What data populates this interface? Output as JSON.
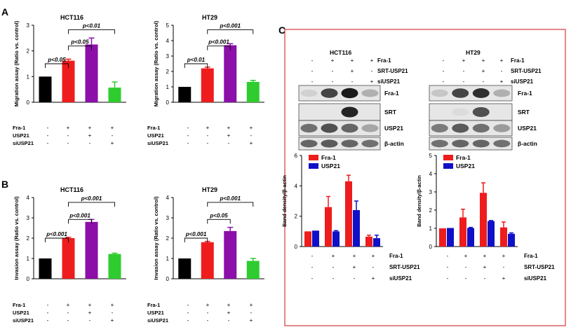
{
  "colors": {
    "black": "#000000",
    "red": "#ee1c1c",
    "purple": "#8b0fa8",
    "green": "#2ecc2e",
    "blue": "#1010c8",
    "frame": "#d63a3a"
  },
  "panel_labels": {
    "a": "A",
    "b": "B",
    "c": "C"
  },
  "conditions_ab": {
    "row_labels": [
      "Fra-1",
      "USP21",
      "siUSP21"
    ],
    "columns": [
      [
        "-",
        "-",
        "-"
      ],
      [
        "+",
        "-",
        "-"
      ],
      [
        "+",
        "+",
        "-"
      ],
      [
        "+",
        "-",
        "+"
      ]
    ]
  },
  "conditions_c": {
    "row_labels": [
      "Fra-1",
      "SRT-USP21",
      "siUSP21"
    ],
    "columns": [
      [
        "-",
        "-",
        "-"
      ],
      [
        "+",
        "-",
        "-"
      ],
      [
        "+",
        "+",
        "-"
      ],
      [
        "+",
        "-",
        "+"
      ]
    ]
  },
  "chart_data": [
    {
      "id": "A-HCT116",
      "type": "bar",
      "title": "HCT116",
      "ylabel": "Migration assay (Ratio vs. control)",
      "ylim": [
        0,
        3
      ],
      "yticks": [
        "0",
        "1",
        "2",
        "3"
      ],
      "values": [
        1.0,
        1.62,
        2.25,
        0.57
      ],
      "errors": [
        0,
        0.06,
        0.25,
        0.22
      ],
      "comparisons": [
        {
          "label": "p<0.05",
          "from": 0,
          "to": 1
        },
        {
          "label": "p<0.05",
          "from": 1,
          "to": 2
        },
        {
          "label": "p<0.01",
          "from": 1,
          "to": 3
        }
      ]
    },
    {
      "id": "A-HT29",
      "type": "bar",
      "title": "HT29",
      "ylabel": "Migration assay (Ratio vs. control)",
      "ylim": [
        0,
        5
      ],
      "yticks": [
        "0",
        "1",
        "2",
        "3",
        "4",
        "5"
      ],
      "values": [
        1.0,
        2.2,
        3.7,
        1.32
      ],
      "errors": [
        0,
        0.08,
        0.1,
        0.1
      ],
      "comparisons": [
        {
          "label": "p<0.01",
          "from": 0,
          "to": 1
        },
        {
          "label": "p<0.001",
          "from": 1,
          "to": 2
        },
        {
          "label": "p<0.001",
          "from": 1,
          "to": 3
        }
      ]
    },
    {
      "id": "B-HCT116",
      "type": "bar",
      "title": "HCT116",
      "ylabel": "Invasion assay (Ratio vs. control)",
      "ylim": [
        0,
        4
      ],
      "yticks": [
        "0",
        "1",
        "2",
        "3",
        "4"
      ],
      "values": [
        1.0,
        2.0,
        2.8,
        1.22
      ],
      "errors": [
        0,
        0.04,
        0.12,
        0.04
      ],
      "comparisons": [
        {
          "label": "p<0.001",
          "from": 0,
          "to": 1
        },
        {
          "label": "p<0.001",
          "from": 1,
          "to": 2
        },
        {
          "label": "p<0.001",
          "from": 1,
          "to": 3
        }
      ]
    },
    {
      "id": "B-HT29",
      "type": "bar",
      "title": "HT29",
      "ylabel": "Invasion assay (Ratio vs. control)",
      "ylim": [
        0,
        4
      ],
      "yticks": [
        "0",
        "1",
        "2",
        "3",
        "4"
      ],
      "values": [
        1.0,
        1.8,
        2.35,
        0.88
      ],
      "errors": [
        0,
        0.04,
        0.18,
        0.12
      ],
      "comparisons": [
        {
          "label": "p<0.001",
          "from": 0,
          "to": 1
        },
        {
          "label": "p<0.05",
          "from": 1,
          "to": 2
        },
        {
          "label": "p<0.001",
          "from": 1,
          "to": 3
        }
      ]
    },
    {
      "id": "C-HCT116",
      "type": "bar",
      "title": "",
      "ylabel": "Band density/β-actin",
      "ylim": [
        0,
        6
      ],
      "yticks": [
        "0",
        "2",
        "4",
        "6"
      ],
      "series": [
        {
          "name": "Fra-1",
          "values": [
            1.0,
            2.6,
            4.3,
            0.65
          ],
          "errors": [
            0,
            0.7,
            0.4,
            0.1
          ]
        },
        {
          "name": "USP21",
          "values": [
            1.05,
            1.0,
            2.4,
            0.55
          ],
          "errors": [
            0,
            0.05,
            0.6,
            0.2
          ]
        }
      ]
    },
    {
      "id": "C-HT29",
      "type": "bar",
      "title": "",
      "ylabel": "Band density/β-actin",
      "ylim": [
        0,
        5
      ],
      "yticks": [
        "0",
        "1",
        "2",
        "3",
        "4",
        "5"
      ],
      "series": [
        {
          "name": "Fra-1",
          "values": [
            1.0,
            1.6,
            2.95,
            1.05
          ],
          "errors": [
            0,
            0.45,
            0.55,
            0.3
          ]
        },
        {
          "name": "USP21",
          "values": [
            1.02,
            1.02,
            1.4,
            0.7
          ],
          "errors": [
            0,
            0.03,
            0.03,
            0.05
          ]
        }
      ]
    }
  ],
  "blots": {
    "left": {
      "title": "HCT116",
      "labels": [
        "Fra-1",
        "SRT",
        "USP21",
        "β-actin"
      ],
      "intensities": [
        [
          0.1,
          0.75,
          0.95,
          0.25
        ],
        [
          0.0,
          0.0,
          0.9,
          0.0
        ],
        [
          0.55,
          0.7,
          0.6,
          0.3
        ],
        [
          0.6,
          0.65,
          0.6,
          0.55
        ]
      ]
    },
    "right": {
      "title": "HT29",
      "labels": [
        "Fra-1",
        "SRT",
        "USP21",
        "β-actin"
      ],
      "intensities": [
        [
          0.15,
          0.75,
          0.85,
          0.25
        ],
        [
          0.0,
          0.05,
          0.7,
          0.0
        ],
        [
          0.5,
          0.65,
          0.55,
          0.35
        ],
        [
          0.55,
          0.6,
          0.6,
          0.55
        ]
      ]
    }
  }
}
